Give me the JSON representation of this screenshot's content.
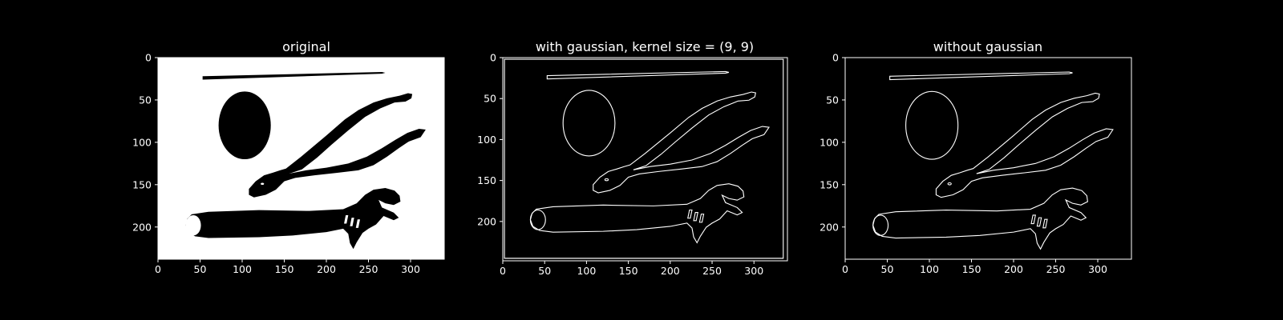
{
  "figure": {
    "background": "#000000",
    "foreground": "#ffffff"
  },
  "chart_data": [
    {
      "type": "image",
      "title": "original",
      "rendering": "filled",
      "xlim": [
        0,
        340
      ],
      "ylim": [
        238,
        0
      ],
      "xticks": [
        0,
        50,
        100,
        150,
        200,
        250,
        300
      ],
      "yticks": [
        0,
        50,
        100,
        150,
        200
      ],
      "background_color": "#ffffff",
      "object_color": "#000000"
    },
    {
      "type": "image",
      "title": "with gaussian, kernel size = (9, 9)",
      "rendering": "edges",
      "xlim": [
        0,
        340
      ],
      "ylim": [
        248,
        0
      ],
      "xticks": [
        0,
        50,
        100,
        150,
        200,
        250,
        300
      ],
      "yticks": [
        0,
        50,
        100,
        150,
        200
      ],
      "background_color": "#000000",
      "object_color": "#ffffff"
    },
    {
      "type": "image",
      "title": "without gaussian",
      "rendering": "edges",
      "xlim": [
        0,
        340
      ],
      "ylim": [
        238,
        0
      ],
      "xticks": [
        0,
        50,
        100,
        150,
        200,
        250,
        300
      ],
      "yticks": [
        0,
        50,
        100,
        150,
        200
      ],
      "background_color": "#000000",
      "object_color": "#ffffff"
    }
  ]
}
